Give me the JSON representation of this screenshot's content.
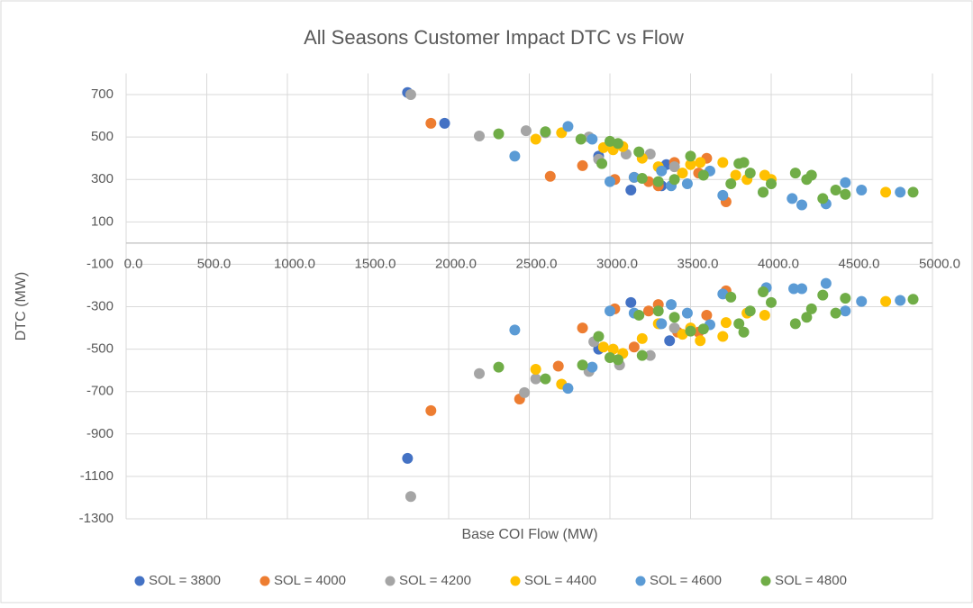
{
  "chart_data": {
    "type": "scatter",
    "title": "All Seasons Customer Impact DTC vs Flow",
    "x_label": "Base COI Flow (MW)",
    "y_label": "DTC (MW)",
    "xlim": [
      0,
      5000
    ],
    "ylim": [
      -1300,
      800
    ],
    "xticks": [
      {
        "value": 0,
        "label": "0.0"
      },
      {
        "value": 500,
        "label": "500.0"
      },
      {
        "value": 1000,
        "label": "1000.0"
      },
      {
        "value": 1500,
        "label": "1500.0"
      },
      {
        "value": 2000,
        "label": "2000.0"
      },
      {
        "value": 2500,
        "label": "2500.0"
      },
      {
        "value": 3000,
        "label": "3000.0"
      },
      {
        "value": 3500,
        "label": "3500.0"
      },
      {
        "value": 4000,
        "label": "4000.0"
      },
      {
        "value": 4500,
        "label": "4500.0"
      },
      {
        "value": 5000,
        "label": "5000.0"
      }
    ],
    "yticks": [
      700,
      500,
      300,
      100,
      -100,
      -300,
      -500,
      -700,
      -900,
      -1100,
      -1300
    ],
    "grid": true,
    "legend": "bottom",
    "series": [
      {
        "name": "SOL = 3800",
        "color": "#4472c4",
        "x": [
          1745,
          1975,
          2930,
          3130,
          3350,
          3320,
          1745,
          2930,
          3130,
          3370,
          3310
        ],
        "values": [
          710,
          565,
          410,
          250,
          370,
          270,
          -1015,
          -500,
          -280,
          -460,
          -380
        ]
      },
      {
        "name": "SOL = 4000",
        "color": "#ed7d31",
        "x": [
          1890,
          2630,
          2830,
          3030,
          3240,
          3300,
          3400,
          3600,
          3720,
          3550,
          3150,
          1890,
          2440,
          2680,
          2830,
          3030,
          3150,
          3240,
          3300,
          3420,
          3600,
          3720,
          3550
        ],
        "values": [
          565,
          315,
          365,
          300,
          290,
          270,
          380,
          400,
          195,
          330,
          310,
          -790,
          -735,
          -580,
          -400,
          -310,
          -490,
          -320,
          -290,
          -420,
          -340,
          -225,
          -420
        ]
      },
      {
        "name": "SOL = 4200",
        "color": "#a5a5a5",
        "x": [
          1765,
          2190,
          2480,
          2600,
          2870,
          2930,
          3100,
          3250,
          3400,
          1765,
          2190,
          2470,
          2540,
          2870,
          2900,
          3060,
          3250,
          3400
        ],
        "values": [
          700,
          505,
          530,
          520,
          500,
          395,
          420,
          420,
          360,
          -1195,
          -615,
          -705,
          -640,
          -605,
          -465,
          -575,
          -530,
          -400
        ]
      },
      {
        "name": "SOL = 4400",
        "color": "#ffc000",
        "x": [
          2540,
          2700,
          2960,
          3020,
          3080,
          3200,
          3300,
          3450,
          3500,
          3560,
          3700,
          3780,
          3850,
          3960,
          4000,
          4710,
          2540,
          2700,
          2960,
          3020,
          3080,
          3200,
          3300,
          3450,
          3500,
          3560,
          3700,
          3720,
          3850,
          3960,
          4710
        ],
        "values": [
          490,
          520,
          450,
          440,
          455,
          400,
          360,
          330,
          370,
          380,
          380,
          320,
          300,
          320,
          300,
          240,
          -595,
          -665,
          -490,
          -500,
          -520,
          -450,
          -380,
          -430,
          -400,
          -460,
          -440,
          -375,
          -330,
          -340,
          -275
        ]
      },
      {
        "name": "SOL = 4600",
        "color": "#5b9bd5",
        "x": [
          2410,
          2740,
          2890,
          3000,
          3150,
          3320,
          3380,
          3480,
          3620,
          3700,
          3950,
          4130,
          4190,
          4340,
          4460,
          4560,
          4800,
          2410,
          2740,
          2890,
          3000,
          3150,
          3320,
          3380,
          3480,
          3620,
          3700,
          3970,
          4140,
          4190,
          4340,
          4460,
          4560,
          4800
        ],
        "values": [
          410,
          550,
          490,
          290,
          310,
          340,
          270,
          280,
          340,
          225,
          240,
          210,
          180,
          185,
          285,
          250,
          240,
          -410,
          -685,
          -585,
          -320,
          -330,
          -380,
          -290,
          -330,
          -385,
          -240,
          -210,
          -215,
          -215,
          -190,
          -320,
          -275,
          -270
        ]
      },
      {
        "name": "SOL = 4800",
        "color": "#70ad47",
        "x": [
          2310,
          2600,
          2820,
          2950,
          3000,
          3050,
          3180,
          3200,
          3300,
          3400,
          3500,
          3580,
          3750,
          3800,
          3830,
          3870,
          3950,
          4000,
          4150,
          4220,
          4250,
          4320,
          4400,
          4460,
          4880,
          2310,
          2600,
          2830,
          2930,
          3000,
          3050,
          3180,
          3200,
          3300,
          3400,
          3500,
          3580,
          3750,
          3800,
          3830,
          3870,
          3950,
          4000,
          4150,
          4220,
          4250,
          4320,
          4400,
          4460,
          4880
        ],
        "values": [
          515,
          525,
          490,
          375,
          480,
          470,
          430,
          305,
          290,
          300,
          410,
          320,
          280,
          375,
          380,
          330,
          240,
          280,
          330,
          300,
          320,
          210,
          250,
          230,
          240,
          -585,
          -640,
          -575,
          -440,
          -540,
          -550,
          -340,
          -530,
          -320,
          -350,
          -415,
          -405,
          -255,
          -380,
          -420,
          -320,
          -230,
          -280,
          -380,
          -350,
          -310,
          -245,
          -330,
          -260,
          -265
        ]
      }
    ]
  }
}
